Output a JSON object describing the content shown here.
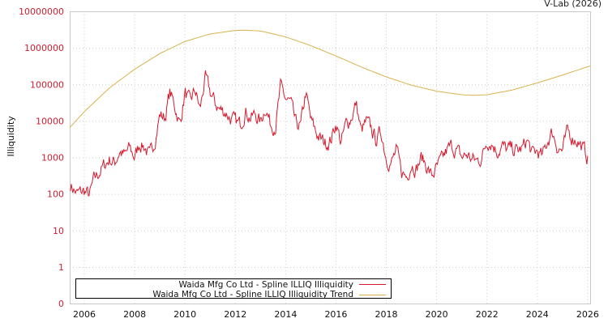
{
  "header": {
    "credit": "V-Lab (2026)"
  },
  "colors": {
    "series": "#d7192d",
    "trend": "#d9b24c",
    "tick_label": "#cc1f2e",
    "grid": "#cccccc",
    "axis": "#c8c8c8"
  },
  "legend": {
    "items": [
      {
        "label": "Waida Mfg Co Ltd - Spline ILLIQ Illiquidity",
        "color": "#d7192d"
      },
      {
        "label": "Waida Mfg Co Ltd - Spline ILLIQ Illiquidity Trend",
        "color": "#d9b24c"
      }
    ]
  },
  "chart_data": {
    "type": "line",
    "title": "",
    "xlabel": "",
    "ylabel": "Illiquidity",
    "yscale": "log",
    "ylim": [
      0.1,
      10000000
    ],
    "xlim": [
      2005.42,
      2026.1
    ],
    "y_ticks": [
      "0",
      "1",
      "10",
      "100",
      "1000",
      "10000",
      "100000",
      "1000000",
      "10000000"
    ],
    "x_ticks": [
      "2006",
      "2008",
      "2010",
      "2012",
      "2014",
      "2016",
      "2018",
      "2020",
      "2022",
      "2024",
      "2026"
    ],
    "grid": true,
    "legend_position": "bottom-left inside",
    "series": [
      {
        "name": "Waida Mfg Co Ltd - Spline ILLIQ Illiquidity",
        "x": [
          2005.45,
          2005.7,
          2006.0,
          2006.2,
          2006.4,
          2006.6,
          2006.8,
          2007.0,
          2007.2,
          2007.4,
          2007.6,
          2007.8,
          2008.0,
          2008.2,
          2008.4,
          2008.6,
          2008.8,
          2009.0,
          2009.2,
          2009.4,
          2009.6,
          2009.8,
          2010.0,
          2010.2,
          2010.4,
          2010.6,
          2010.8,
          2011.0,
          2011.2,
          2011.4,
          2011.6,
          2011.8,
          2012.0,
          2012.2,
          2012.4,
          2012.6,
          2012.8,
          2013.0,
          2013.2,
          2013.4,
          2013.6,
          2013.8,
          2014.0,
          2014.2,
          2014.4,
          2014.6,
          2014.8,
          2015.0,
          2015.2,
          2015.4,
          2015.6,
          2015.8,
          2016.0,
          2016.2,
          2016.4,
          2016.6,
          2016.8,
          2017.0,
          2017.2,
          2017.4,
          2017.6,
          2017.8,
          2018.0,
          2018.2,
          2018.4,
          2018.6,
          2018.8,
          2019.0,
          2019.2,
          2019.4,
          2019.6,
          2019.8,
          2020.0,
          2020.2,
          2020.4,
          2020.6,
          2020.8,
          2021.0,
          2021.2,
          2021.4,
          2021.6,
          2021.8,
          2022.0,
          2022.2,
          2022.4,
          2022.6,
          2022.8,
          2023.0,
          2023.2,
          2023.4,
          2023.6,
          2023.8,
          2024.0,
          2024.2,
          2024.4,
          2024.6,
          2024.8,
          2025.0,
          2025.2,
          2025.4,
          2025.6,
          2025.8,
          2026.0
        ],
        "values": [
          180,
          100,
          120,
          90,
          250,
          400,
          600,
          900,
          700,
          1500,
          1100,
          1800,
          1000,
          2500,
          2000,
          1000,
          3000,
          15000,
          12000,
          60000,
          25000,
          8000,
          60000,
          30000,
          70000,
          20000,
          150000,
          60000,
          30000,
          20000,
          18000,
          12000,
          9000,
          8000,
          20000,
          12000,
          15000,
          9000,
          25000,
          8000,
          7500,
          80000,
          40000,
          30000,
          8000,
          7000,
          60000,
          10000,
          5000,
          3000,
          2500,
          3000,
          9000,
          2500,
          8000,
          12000,
          30000,
          5000,
          9000,
          6000,
          3000,
          5000,
          1000,
          700,
          1500,
          400,
          300,
          700,
          500,
          1000,
          600,
          300,
          500,
          800,
          1500,
          2000,
          1500,
          1000,
          1200,
          900,
          800,
          1000,
          3000,
          2500,
          1500,
          2000,
          1600,
          1700,
          1500,
          1700,
          3000,
          1200,
          1500,
          1000,
          2800,
          5000,
          2000,
          1500,
          5000,
          3500,
          3000,
          1800,
          1000
        ]
      },
      {
        "name": "Waida Mfg Co Ltd - Spline ILLIQ Illiquidity Trend",
        "x": [
          2005.42,
          2006.0,
          2007.0,
          2008.0,
          2009.0,
          2010.0,
          2011.0,
          2012.0,
          2012.4,
          2013.0,
          2014.0,
          2015.0,
          2016.0,
          2017.0,
          2018.0,
          2019.0,
          2020.0,
          2021.0,
          2021.5,
          2022.0,
          2023.0,
          2024.0,
          2025.0,
          2026.1
        ],
        "values": [
          6500,
          18000,
          80000,
          260000,
          700000,
          1500000,
          2400000,
          3000000,
          3050000,
          2900000,
          2000000,
          1150000,
          600000,
          300000,
          160000,
          95000,
          65000,
          52000,
          50000,
          52000,
          70000,
          110000,
          180000,
          320000
        ]
      }
    ]
  }
}
